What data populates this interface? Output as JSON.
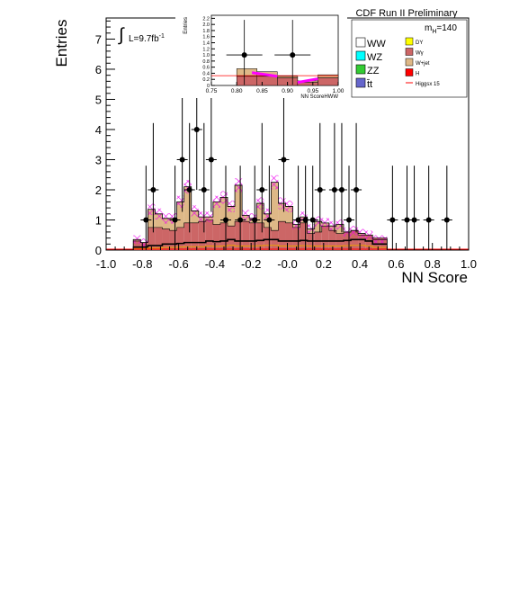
{
  "chart_data": {
    "type": "bar",
    "title": "CDF Run II Preliminary",
    "xlabel": "NN Score",
    "ylabel": "Entries",
    "xlim": [
      -1.0,
      1.0
    ],
    "ylim": [
      0,
      7.7
    ],
    "x_ticks": [
      "-1.0",
      "-0.8",
      "-0.6",
      "-0.4",
      "-0.2",
      "-0.0",
      "0.2",
      "0.4",
      "0.6",
      "0.8",
      "1.0"
    ],
    "y_ticks": [
      "0",
      "1",
      "2",
      "3",
      "4",
      "5",
      "6",
      "7"
    ],
    "luminosity": "L=9.7fb",
    "luminosity_exp": "-1",
    "mass_label": "m",
    "mass_sub": "H",
    "mass_value": "=140",
    "legend": [
      {
        "name": "WW",
        "color": "#ffffff",
        "size": "big"
      },
      {
        "name": "DY",
        "color": "#ffff00",
        "size": "small"
      },
      {
        "name": "WZ",
        "color": "#00ffff",
        "size": "big"
      },
      {
        "name": "Wγ",
        "color": "#cc6666",
        "size": "small"
      },
      {
        "name": "ZZ",
        "color": "#33cc33",
        "size": "big"
      },
      {
        "name": "W+jet",
        "color": "#deb887",
        "size": "small"
      },
      {
        "name": "t̄t",
        "color": "#6666cc",
        "size": "big"
      },
      {
        "name": "H",
        "color": "#ff0000",
        "size": "small"
      },
      {
        "name": "Higgsx 15",
        "color": "#ff0000",
        "size": "line"
      }
    ],
    "bins_start": -0.85,
    "bin_width": 0.04,
    "stack_order": [
      "Wγ",
      "W+jet"
    ],
    "wgamma": [
      0.3,
      0.25,
      0.75,
      0.75,
      0.7,
      0.65,
      0.75,
      0.9,
      0.9,
      0.95,
      1.0,
      0.85,
      0.9,
      0.8,
      0.95,
      0.95,
      0.9,
      0.9,
      0.75,
      0.65,
      0.95,
      0.9,
      0.75,
      0.9,
      0.55,
      0.6,
      0.8,
      0.65,
      0.55,
      0.6,
      0.65,
      0.5,
      0.5,
      0.4,
      0.4
    ],
    "total_bkg": [
      0.35,
      0.25,
      1.35,
      1.2,
      1.05,
      1.05,
      1.6,
      2.1,
      1.3,
      1.1,
      1.1,
      1.6,
      1.75,
      1.45,
      2.15,
      1.15,
      1.05,
      1.55,
      1.2,
      2.25,
      1.55,
      1.45,
      0.85,
      1.1,
      0.7,
      0.95,
      0.9,
      0.8,
      0.85,
      0.6,
      0.65,
      0.55,
      0.5,
      0.35,
      0.35
    ],
    "ww": [
      0.1,
      0.1,
      0.15,
      0.15,
      0.2,
      0.2,
      0.22,
      0.25,
      0.25,
      0.25,
      0.3,
      0.28,
      0.3,
      0.35,
      0.3,
      0.3,
      0.3,
      0.32,
      0.35,
      0.35,
      0.3,
      0.3,
      0.3,
      0.32,
      0.3,
      0.3,
      0.3,
      0.3,
      0.3,
      0.32,
      0.35,
      0.35,
      0.3,
      0.2,
      0.2
    ],
    "data_points": [
      {
        "x": -0.78,
        "y": 1
      },
      {
        "x": -0.74,
        "y": 2
      },
      {
        "x": -0.62,
        "y": 1
      },
      {
        "x": -0.58,
        "y": 3
      },
      {
        "x": -0.54,
        "y": 2
      },
      {
        "x": -0.5,
        "y": 4
      },
      {
        "x": -0.46,
        "y": 2
      },
      {
        "x": -0.42,
        "y": 3
      },
      {
        "x": -0.34,
        "y": 1
      },
      {
        "x": -0.26,
        "y": 1
      },
      {
        "x": -0.18,
        "y": 1
      },
      {
        "x": -0.14,
        "y": 2
      },
      {
        "x": -0.1,
        "y": 1
      },
      {
        "x": -0.02,
        "y": 3
      },
      {
        "x": 0.06,
        "y": 1
      },
      {
        "x": 0.1,
        "y": 1
      },
      {
        "x": 0.14,
        "y": 1
      },
      {
        "x": 0.18,
        "y": 2
      },
      {
        "x": 0.26,
        "y": 2
      },
      {
        "x": 0.3,
        "y": 2
      },
      {
        "x": 0.34,
        "y": 1
      },
      {
        "x": 0.38,
        "y": 2
      },
      {
        "x": 0.58,
        "y": 1
      },
      {
        "x": 0.66,
        "y": 1
      },
      {
        "x": 0.7,
        "y": 1
      },
      {
        "x": 0.78,
        "y": 1
      },
      {
        "x": 0.88,
        "y": 1
      }
    ],
    "inset": {
      "xlabel": "NN ScoreHWW",
      "ylabel": "Entries",
      "xlim": [
        0.75,
        1.0
      ],
      "ylim": [
        0,
        2.3
      ],
      "x_ticks": [
        "0.75",
        "0.80",
        "0.85",
        "0.90",
        "0.95",
        "1.00"
      ],
      "y_ticks": [
        "0",
        "0.2",
        "0.4",
        "0.6",
        "0.8",
        "1.0",
        "1.2",
        "1.4",
        "1.6",
        "1.8",
        "2.0",
        "2.2"
      ],
      "bins": [
        {
          "x0": 0.8,
          "x1": 0.84,
          "tan": 0.55,
          "red": 0.3
        },
        {
          "x0": 0.84,
          "x1": 0.88,
          "tan": 0.45,
          "red": 0.3
        },
        {
          "x0": 0.88,
          "x1": 0.92,
          "tan": 0.3,
          "red": 0.25
        },
        {
          "x0": 0.92,
          "x1": 0.96,
          "tan": 0.15,
          "red": 0.1
        },
        {
          "x0": 0.96,
          "x1": 1.0,
          "tan": 0.35,
          "red": 0.25
        }
      ],
      "data_points": [
        {
          "x": 0.815,
          "y": 1
        },
        {
          "x": 0.91,
          "y": 1
        }
      ]
    }
  }
}
